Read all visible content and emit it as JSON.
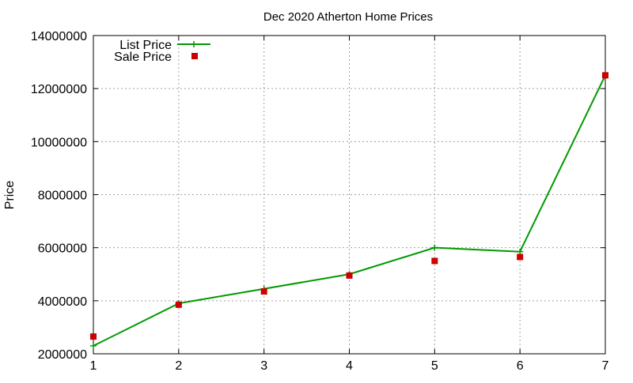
{
  "chart_data": {
    "type": "line",
    "title": "Dec 2020 Atherton Home Prices",
    "xlabel": "",
    "ylabel": "Price",
    "x": [
      1,
      2,
      3,
      4,
      5,
      6,
      7
    ],
    "xlim": [
      1,
      7
    ],
    "ylim": [
      2000000,
      14000000
    ],
    "xticks": [
      "1",
      "2",
      "3",
      "4",
      "5",
      "6",
      "7"
    ],
    "yticks": [
      "2000000",
      "4000000",
      "6000000",
      "8000000",
      "10000000",
      "12000000",
      "14000000"
    ],
    "grid": true,
    "legend_position": "top-left",
    "series": [
      {
        "name": "List Price",
        "style": "line-with-plus-markers",
        "color": "#009900",
        "values": [
          2300000,
          3900000,
          4450000,
          5000000,
          6000000,
          5850000,
          12500000
        ]
      },
      {
        "name": "Sale Price",
        "style": "square-markers",
        "color": "#cc0000",
        "values": [
          2650000,
          3850000,
          4350000,
          4950000,
          5500000,
          5650000,
          12500000
        ]
      }
    ]
  }
}
